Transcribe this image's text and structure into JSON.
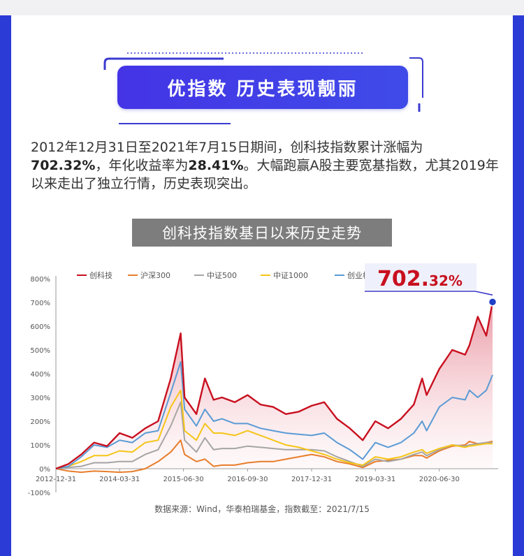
{
  "banner": {
    "title": "优指数 历史表现靓丽"
  },
  "intro": {
    "p1": "2012年12月31日至2021年7月15日期间，创科技指数累计涨幅为",
    "p2": "702.32%",
    "p3": "，年化收益率为",
    "p4": "28.41%",
    "p5": "。大幅跑赢A股主要宽基指数，尤其2019年以来走出了独立行情，历史表现突出。"
  },
  "chart_title": "创科技指数基日以来历史走势",
  "source": "数据来源：Wind，华泰柏瑞基金，指数截至：2021/7/15",
  "callout": {
    "main": "702.",
    "small": "32%"
  },
  "colors": {
    "banner": "#4434e6",
    "frame": "#2b3bd6",
    "callout": "#3a36c8"
  },
  "chart_data": {
    "type": "line",
    "title": "创科技指数基日以来历史走势",
    "xlabel": "",
    "ylabel": "",
    "ylim": [
      -100,
      800
    ],
    "yticks": [
      "-100%",
      "0%",
      "100%",
      "200%",
      "300%",
      "400%",
      "500%",
      "600%",
      "700%",
      "800%"
    ],
    "xticks": [
      "2012-12-31",
      "2014-03-31",
      "2015-06-30",
      "2016-09-30",
      "2017-12-31",
      "2019-03-31",
      "2020-06-30"
    ],
    "grid": false,
    "legend_position": "top",
    "annotation": "702.32%",
    "x": [
      "2012-12-31",
      "2013-03-31",
      "2013-06-30",
      "2013-09-30",
      "2013-12-31",
      "2014-03-31",
      "2014-06-30",
      "2014-09-30",
      "2014-12-31",
      "2015-03-31",
      "2015-06-10",
      "2015-07-08",
      "2015-09-30",
      "2015-11-30",
      "2016-01-31",
      "2016-03-31",
      "2016-06-30",
      "2016-09-30",
      "2016-12-31",
      "2017-03-31",
      "2017-06-30",
      "2017-09-30",
      "2017-12-31",
      "2018-03-31",
      "2018-06-30",
      "2018-09-30",
      "2018-12-31",
      "2019-03-31",
      "2019-06-30",
      "2019-09-30",
      "2019-12-31",
      "2020-02-28",
      "2020-03-31",
      "2020-06-30",
      "2020-09-30",
      "2020-12-31",
      "2021-01-31",
      "2021-03-31",
      "2021-05-31",
      "2021-07-15"
    ],
    "series": [
      {
        "name": "创科技",
        "color": "#c8101f",
        "values": [
          0,
          20,
          60,
          110,
          95,
          150,
          130,
          170,
          200,
          380,
          570,
          300,
          230,
          380,
          290,
          300,
          280,
          310,
          270,
          260,
          230,
          240,
          265,
          280,
          210,
          170,
          120,
          200,
          170,
          210,
          270,
          380,
          310,
          420,
          500,
          480,
          520,
          640,
          560,
          702
        ]
      },
      {
        "name": "沪深300",
        "color": "#e87d2b",
        "values": [
          0,
          -10,
          -15,
          -10,
          -12,
          -15,
          -12,
          0,
          30,
          70,
          120,
          60,
          30,
          40,
          10,
          15,
          15,
          25,
          30,
          30,
          40,
          50,
          60,
          50,
          30,
          20,
          5,
          30,
          35,
          40,
          55,
          55,
          45,
          75,
          95,
          100,
          115,
          105,
          110,
          115
        ]
      },
      {
        "name": "中证500",
        "color": "#a5a5a5",
        "values": [
          0,
          5,
          10,
          25,
          25,
          30,
          30,
          60,
          80,
          180,
          280,
          120,
          70,
          130,
          80,
          85,
          85,
          95,
          90,
          85,
          80,
          80,
          80,
          75,
          50,
          30,
          10,
          40,
          30,
          40,
          60,
          70,
          55,
          80,
          100,
          95,
          100,
          105,
          110,
          110
        ]
      },
      {
        "name": "中证1000",
        "color": "#f5c518",
        "values": [
          0,
          10,
          30,
          55,
          55,
          75,
          70,
          110,
          120,
          260,
          330,
          160,
          120,
          190,
          150,
          150,
          140,
          160,
          140,
          120,
          100,
          90,
          75,
          60,
          40,
          25,
          15,
          50,
          40,
          50,
          70,
          80,
          65,
          85,
          100,
          90,
          95,
          100,
          105,
          105
        ]
      },
      {
        "name": "创业板指",
        "color": "#5b9bd5",
        "values": [
          0,
          10,
          50,
          100,
          90,
          120,
          110,
          150,
          160,
          320,
          450,
          250,
          180,
          250,
          200,
          210,
          190,
          190,
          170,
          160,
          150,
          145,
          140,
          150,
          110,
          80,
          40,
          110,
          90,
          110,
          150,
          200,
          160,
          260,
          300,
          290,
          330,
          300,
          330,
          395
        ]
      }
    ]
  }
}
